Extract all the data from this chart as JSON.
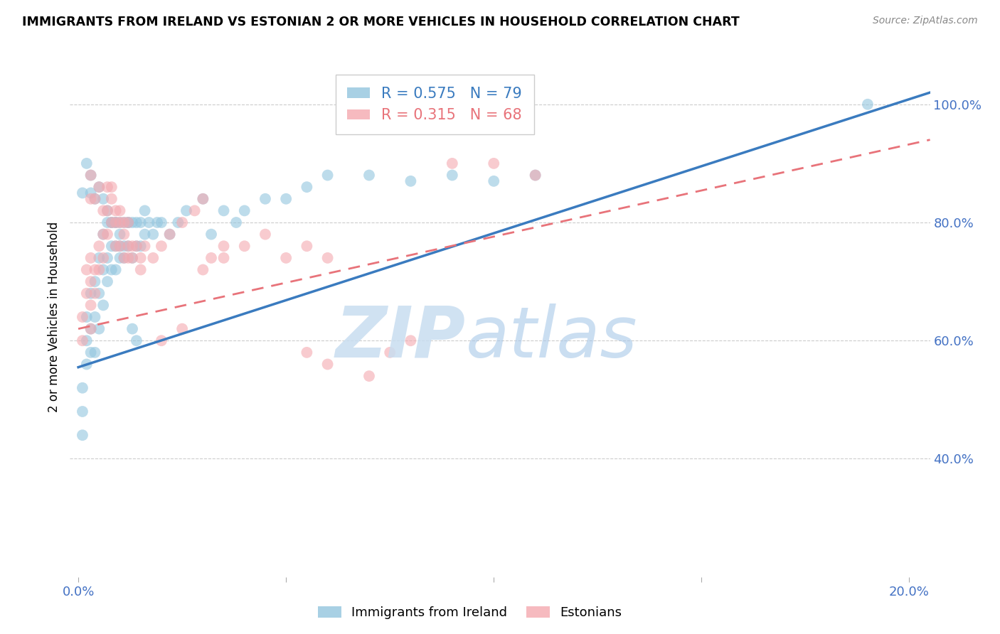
{
  "title": "IMMIGRANTS FROM IRELAND VS ESTONIAN 2 OR MORE VEHICLES IN HOUSEHOLD CORRELATION CHART",
  "source": "Source: ZipAtlas.com",
  "ylabel": "2 or more Vehicles in Household",
  "ytick_labels": [
    "100.0%",
    "80.0%",
    "60.0%",
    "40.0%"
  ],
  "ytick_values": [
    1.0,
    0.8,
    0.6,
    0.4
  ],
  "xlim": [
    -0.002,
    0.205
  ],
  "ylim": [
    0.2,
    1.08
  ],
  "blue_R": 0.575,
  "blue_N": 79,
  "pink_R": 0.315,
  "pink_N": 68,
  "blue_color": "#92c5de",
  "pink_color": "#f4a9b0",
  "blue_line_color": "#3a7bbf",
  "pink_line_color": "#e8737a",
  "legend_label_blue": "Immigrants from Ireland",
  "legend_label_pink": "Estonians",
  "blue_line_x": [
    0.0,
    0.205
  ],
  "blue_line_y": [
    0.555,
    1.02
  ],
  "pink_line_x": [
    0.0,
    0.205
  ],
  "pink_line_y": [
    0.62,
    0.94
  ],
  "blue_points_x": [
    0.001,
    0.001,
    0.001,
    0.002,
    0.002,
    0.002,
    0.003,
    0.003,
    0.003,
    0.004,
    0.004,
    0.004,
    0.005,
    0.005,
    0.005,
    0.006,
    0.006,
    0.006,
    0.007,
    0.007,
    0.007,
    0.008,
    0.008,
    0.008,
    0.009,
    0.009,
    0.009,
    0.01,
    0.01,
    0.01,
    0.011,
    0.011,
    0.012,
    0.012,
    0.013,
    0.013,
    0.014,
    0.014,
    0.015,
    0.015,
    0.016,
    0.016,
    0.017,
    0.018,
    0.019,
    0.02,
    0.022,
    0.024,
    0.026,
    0.03,
    0.032,
    0.035,
    0.038,
    0.04,
    0.045,
    0.05,
    0.055,
    0.06,
    0.07,
    0.08,
    0.09,
    0.1,
    0.11,
    0.001,
    0.002,
    0.003,
    0.003,
    0.004,
    0.005,
    0.006,
    0.007,
    0.008,
    0.009,
    0.01,
    0.011,
    0.012,
    0.013,
    0.014,
    0.19
  ],
  "blue_points_y": [
    0.44,
    0.48,
    0.52,
    0.56,
    0.6,
    0.64,
    0.58,
    0.62,
    0.68,
    0.58,
    0.64,
    0.7,
    0.62,
    0.68,
    0.74,
    0.66,
    0.72,
    0.78,
    0.7,
    0.74,
    0.8,
    0.72,
    0.76,
    0.8,
    0.72,
    0.76,
    0.8,
    0.74,
    0.76,
    0.8,
    0.74,
    0.8,
    0.76,
    0.8,
    0.74,
    0.8,
    0.76,
    0.8,
    0.76,
    0.8,
    0.78,
    0.82,
    0.8,
    0.78,
    0.8,
    0.8,
    0.78,
    0.8,
    0.82,
    0.84,
    0.78,
    0.82,
    0.8,
    0.82,
    0.84,
    0.84,
    0.86,
    0.88,
    0.88,
    0.87,
    0.88,
    0.87,
    0.88,
    0.85,
    0.9,
    0.85,
    0.88,
    0.84,
    0.86,
    0.84,
    0.82,
    0.8,
    0.8,
    0.78,
    0.76,
    0.8,
    0.62,
    0.6,
    1.0
  ],
  "pink_points_x": [
    0.001,
    0.001,
    0.002,
    0.002,
    0.003,
    0.003,
    0.003,
    0.003,
    0.004,
    0.004,
    0.005,
    0.005,
    0.006,
    0.006,
    0.007,
    0.007,
    0.008,
    0.008,
    0.009,
    0.009,
    0.01,
    0.01,
    0.011,
    0.011,
    0.012,
    0.012,
    0.013,
    0.014,
    0.015,
    0.016,
    0.018,
    0.02,
    0.022,
    0.025,
    0.028,
    0.03,
    0.032,
    0.035,
    0.04,
    0.045,
    0.05,
    0.055,
    0.06,
    0.003,
    0.003,
    0.004,
    0.005,
    0.006,
    0.007,
    0.008,
    0.009,
    0.01,
    0.011,
    0.012,
    0.013,
    0.015,
    0.02,
    0.025,
    0.03,
    0.035,
    0.055,
    0.06,
    0.07,
    0.075,
    0.08,
    0.09,
    0.1,
    0.11
  ],
  "pink_points_y": [
    0.6,
    0.64,
    0.68,
    0.72,
    0.62,
    0.66,
    0.7,
    0.74,
    0.68,
    0.72,
    0.72,
    0.76,
    0.74,
    0.78,
    0.78,
    0.82,
    0.8,
    0.86,
    0.76,
    0.82,
    0.76,
    0.8,
    0.74,
    0.78,
    0.74,
    0.76,
    0.74,
    0.76,
    0.74,
    0.76,
    0.74,
    0.76,
    0.78,
    0.8,
    0.82,
    0.72,
    0.74,
    0.76,
    0.76,
    0.78,
    0.74,
    0.76,
    0.74,
    0.84,
    0.88,
    0.84,
    0.86,
    0.82,
    0.86,
    0.84,
    0.8,
    0.82,
    0.8,
    0.8,
    0.76,
    0.72,
    0.6,
    0.62,
    0.84,
    0.74,
    0.58,
    0.56,
    0.54,
    0.58,
    0.6,
    0.9,
    0.9,
    0.88
  ]
}
